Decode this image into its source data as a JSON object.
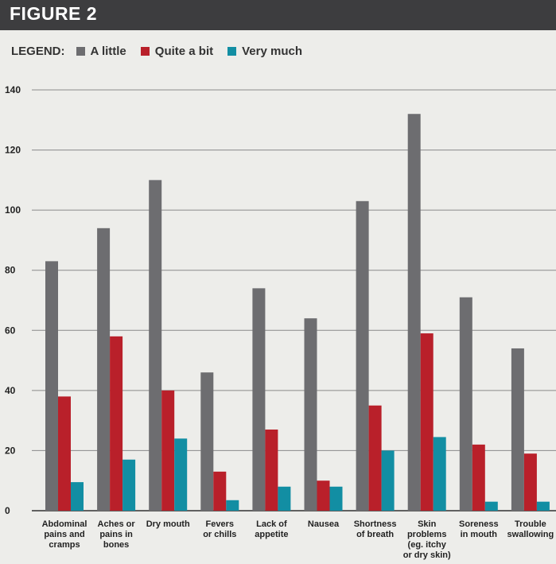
{
  "header": {
    "title": "FIGURE 2"
  },
  "legend": {
    "label": "LEGEND:"
  },
  "colors": {
    "header_bg": "#3d3d3f",
    "background": "#ededea",
    "series_a_little": "#6d6d70",
    "series_quite_a_bit": "#b9202a",
    "series_very_much": "#128ea3"
  },
  "chart_data": {
    "type": "bar",
    "title": "",
    "xlabel": "",
    "ylabel": "",
    "ylim": [
      0,
      140
    ],
    "yticks": [
      0,
      20,
      40,
      60,
      80,
      100,
      120,
      140
    ],
    "grid": true,
    "legend_position": "top-left",
    "categories": [
      [
        "Abdominal",
        "pains and",
        "cramps"
      ],
      [
        "Aches or",
        "pains in",
        "bones"
      ],
      [
        "Dry mouth"
      ],
      [
        "Fevers",
        "or chills"
      ],
      [
        "Lack of",
        "appetite"
      ],
      [
        "Nausea"
      ],
      [
        "Shortness",
        "of breath"
      ],
      [
        "Skin",
        "problems",
        "(eg. itchy",
        "or dry skin)"
      ],
      [
        "Soreness",
        "in mouth"
      ],
      [
        "Trouble",
        "swallowing"
      ]
    ],
    "series": [
      {
        "name": "A little",
        "color": "#6d6d70",
        "values": [
          83,
          94,
          110,
          46,
          74,
          64,
          103,
          132,
          71,
          54
        ]
      },
      {
        "name": "Quite a bit",
        "color": "#b9202a",
        "values": [
          38,
          58,
          40,
          13,
          27,
          10,
          35,
          59,
          22,
          19
        ]
      },
      {
        "name": "Very much",
        "color": "#128ea3",
        "values": [
          9.5,
          17,
          24,
          3.5,
          8,
          8,
          20,
          24.5,
          3,
          3
        ]
      }
    ]
  }
}
